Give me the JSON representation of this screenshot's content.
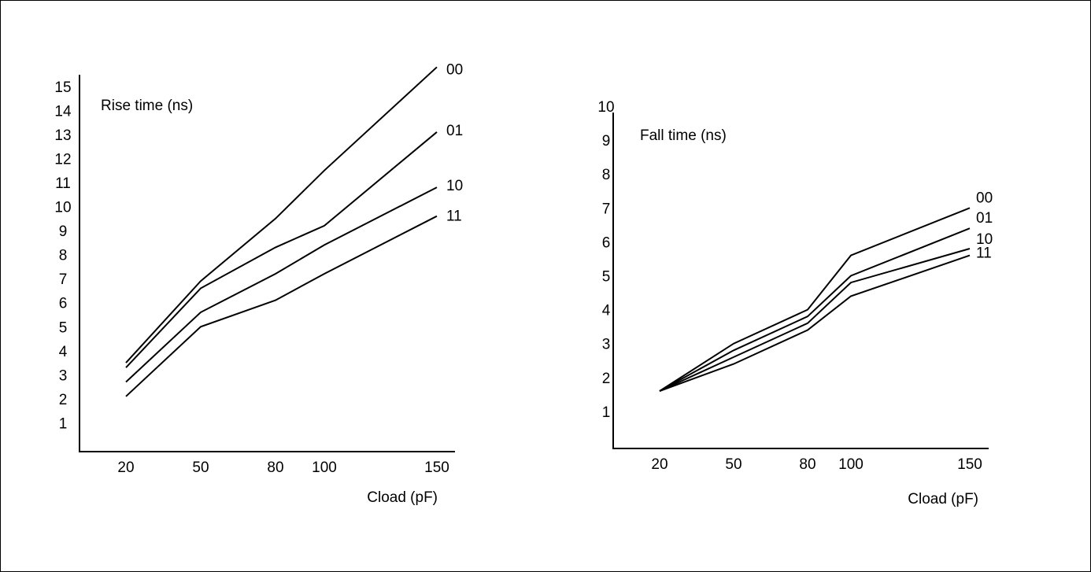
{
  "chart_data": [
    {
      "type": "line",
      "title": "Rise time (ns)",
      "xlabel": "Cload (pF)",
      "ylabel": "",
      "x": [
        20,
        50,
        80,
        100,
        150
      ],
      "x_tick_labels": [
        "20",
        "50",
        "80",
        "100",
        "150"
      ],
      "y_tick_labels": [
        "1",
        "2",
        "3",
        "4",
        "5",
        "6",
        "7",
        "8",
        "9",
        "10",
        "11",
        "12",
        "13",
        "14",
        "15"
      ],
      "ylim": [
        0,
        15.5
      ],
      "series": [
        {
          "name": "00",
          "values": [
            3.5,
            6.9,
            9.5,
            11.5,
            15.8
          ]
        },
        {
          "name": "01",
          "values": [
            3.3,
            6.6,
            8.3,
            9.2,
            13.1
          ]
        },
        {
          "name": "10",
          "values": [
            2.7,
            5.6,
            7.2,
            8.4,
            10.8
          ]
        },
        {
          "name": "11",
          "values": [
            2.1,
            5.0,
            6.1,
            7.2,
            9.6
          ]
        }
      ],
      "grid": false,
      "legend": "labels at line ends"
    },
    {
      "type": "line",
      "title": "Fall time (ns)",
      "xlabel": "Cload (pF)",
      "ylabel": "",
      "x": [
        20,
        50,
        80,
        100,
        150
      ],
      "x_tick_labels": [
        "20",
        "50",
        "80",
        "100",
        "150"
      ],
      "y_tick_labels": [
        "1",
        "2",
        "3",
        "4",
        "5",
        "6",
        "7",
        "8",
        "9",
        "10"
      ],
      "ylim": [
        0,
        10
      ],
      "series": [
        {
          "name": "00",
          "values": [
            1.6,
            3.0,
            4.0,
            5.6,
            7.0
          ]
        },
        {
          "name": "01",
          "values": [
            1.6,
            2.8,
            3.8,
            5.0,
            6.4
          ]
        },
        {
          "name": "10",
          "values": [
            1.6,
            2.6,
            3.6,
            4.8,
            5.8
          ]
        },
        {
          "name": "11",
          "values": [
            1.6,
            2.4,
            3.4,
            4.4,
            5.6
          ]
        }
      ],
      "grid": false,
      "legend": "labels at line ends"
    }
  ]
}
